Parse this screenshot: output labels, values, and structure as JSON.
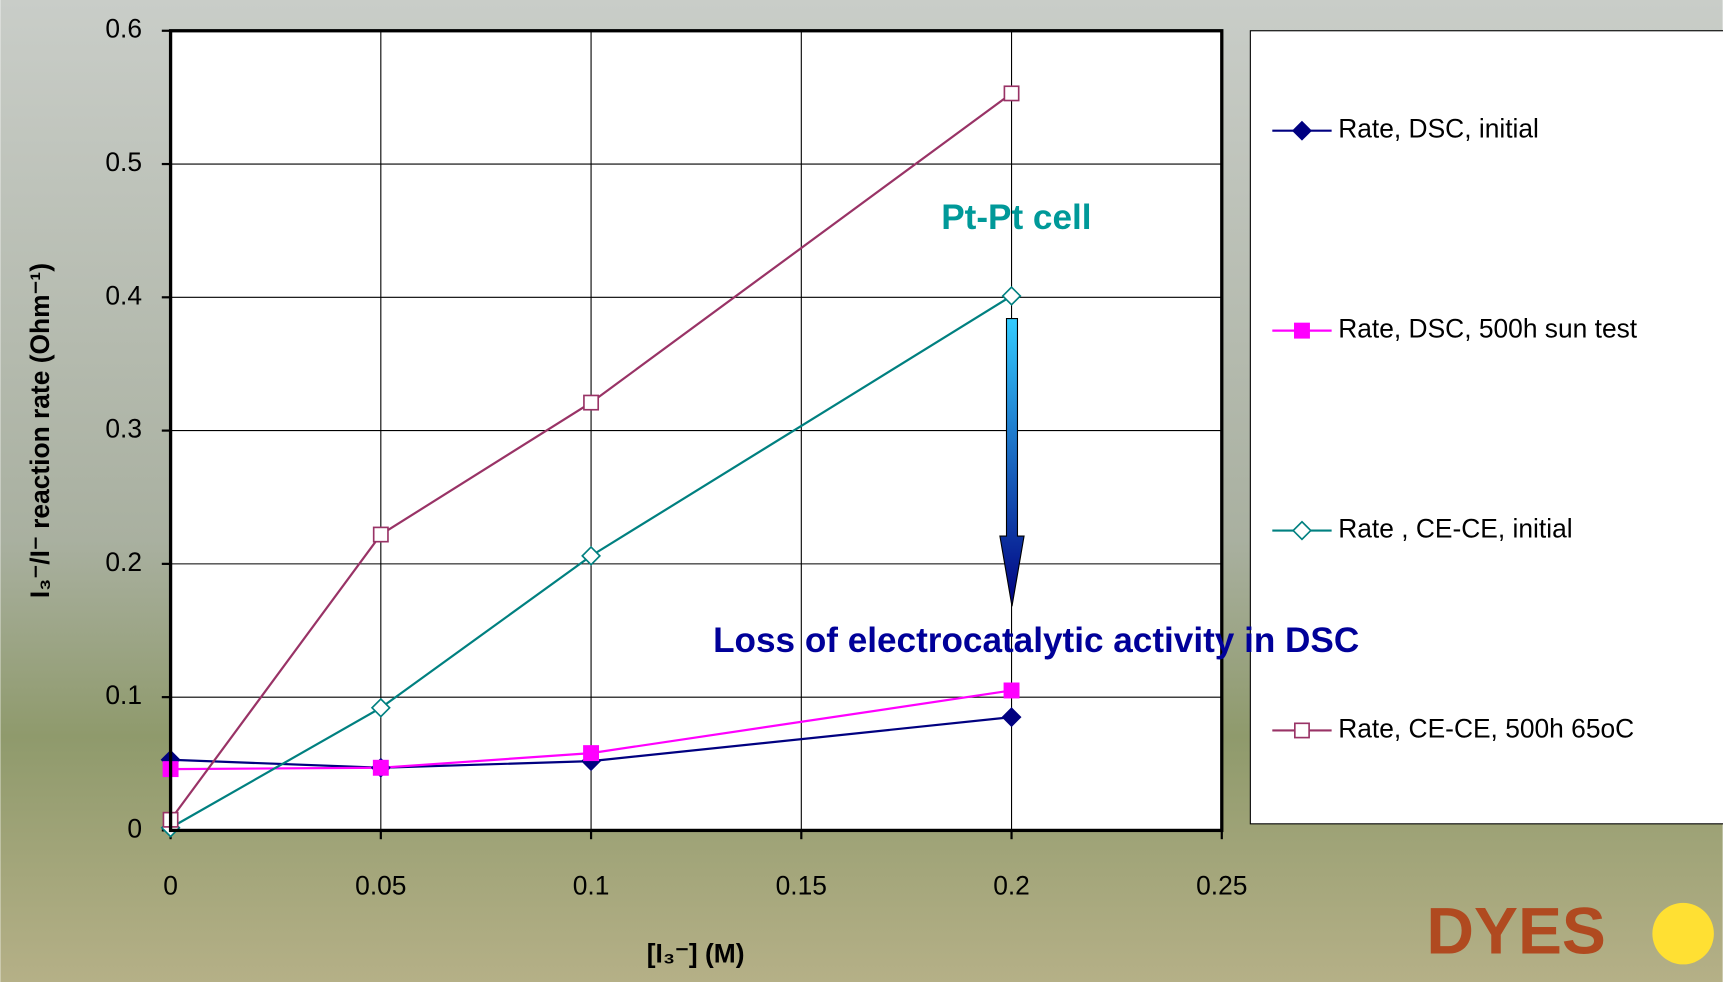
{
  "chart_data": {
    "type": "line",
    "x_label": "[I₃⁻] (M)",
    "y_label": "I₃⁻/I⁻ reaction rate (Ohm⁻¹)",
    "x": [
      0,
      0.05,
      0.1,
      0.2
    ],
    "series": [
      {
        "name": "Rate, DSC, initial",
        "color": "#000080",
        "marker": "diamond",
        "filled": true,
        "values": [
          0.053,
          0.047,
          0.052,
          0.085
        ]
      },
      {
        "name": "Rate, DSC, 500h sun test",
        "color": "#ff00ff",
        "marker": "square",
        "filled": true,
        "values": [
          0.046,
          0.047,
          0.058,
          0.105
        ]
      },
      {
        "name": "Rate , CE-CE, initial",
        "color": "#008080",
        "marker": "diamond",
        "filled": false,
        "values": [
          0.002,
          0.092,
          0.206,
          0.401
        ]
      },
      {
        "name": "Rate, CE-CE, 500h 65oC",
        "color": "#993366",
        "marker": "square",
        "filled": false,
        "values": [
          0.008,
          0.222,
          0.321,
          0.553
        ]
      }
    ],
    "xlim": [
      0,
      0.25
    ],
    "xticks": [
      0,
      0.05,
      0.1,
      0.15,
      0.2,
      0.25
    ],
    "ylim": [
      0,
      0.6
    ],
    "yticks": [
      0,
      0.1,
      0.2,
      0.3,
      0.4,
      0.5,
      0.6
    ],
    "grid": true,
    "legend": "right",
    "annotations": [
      "Pt-Pt cell",
      "Loss of electrocatalytic activity in DSC"
    ],
    "logo": "DYES"
  }
}
